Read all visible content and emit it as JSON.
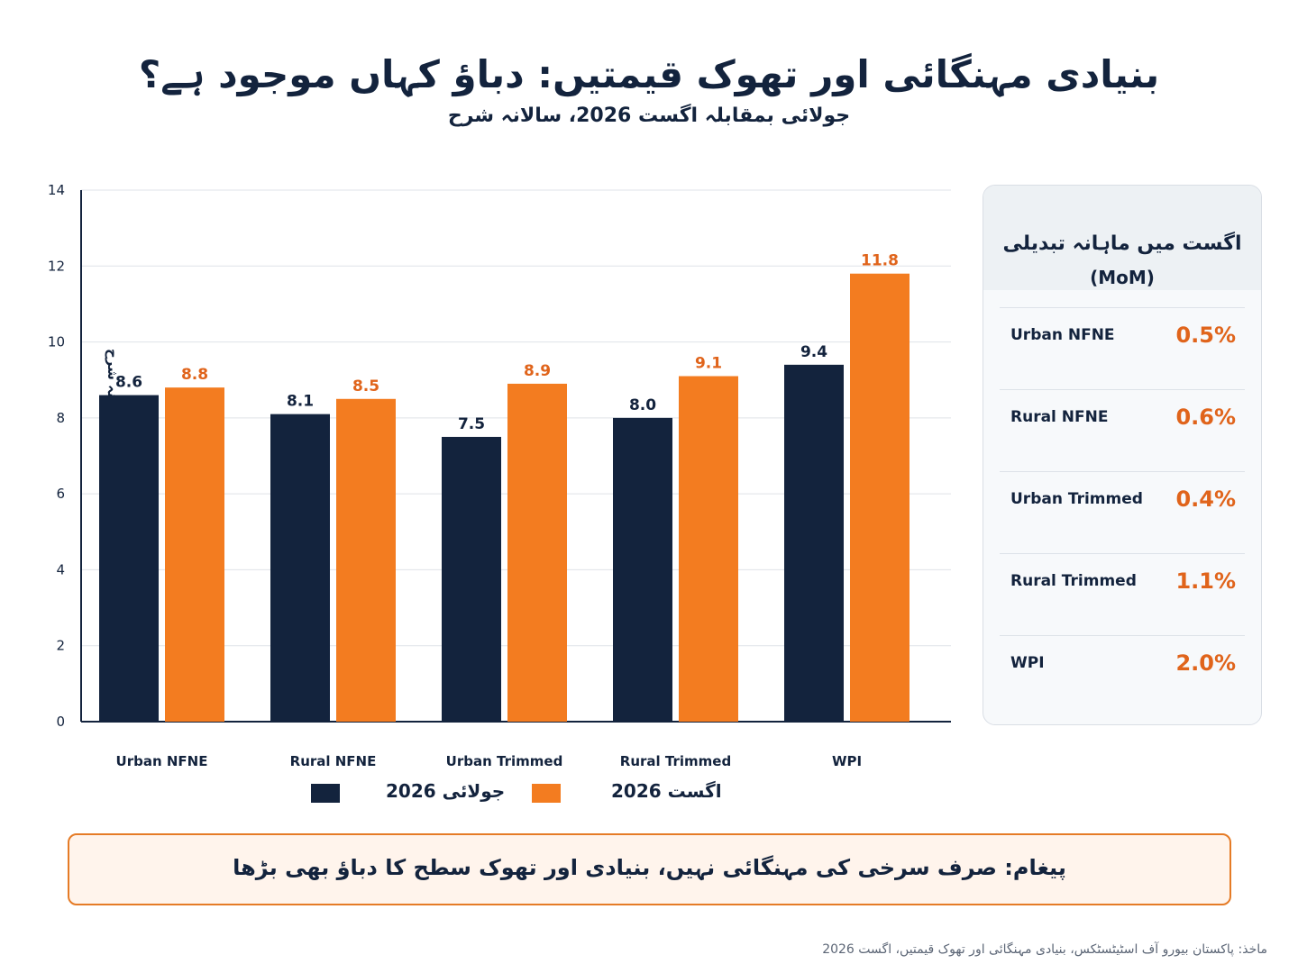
{
  "title": "بنیادی مہنگائی اور تھوک قیمتیں: دباؤ کہاں موجود ہے؟",
  "subtitle": "جولائی بمقابلہ اگست 2026، سالانہ شرح",
  "colors": {
    "july": "#13233d",
    "august": "#f37c20",
    "august_text": "#e0641b",
    "grid": "#dfe3e8",
    "axis": "#13233d"
  },
  "chart_data": {
    "type": "bar",
    "categories": [
      "Urban NFNE",
      "Rural NFNE",
      "Urban Trimmed",
      "Rural Trimmed",
      "WPI"
    ],
    "series": [
      {
        "name": "جولائی 2026",
        "values": [
          8.6,
          8.1,
          7.5,
          8.0,
          9.4
        ]
      },
      {
        "name": "اگست 2026",
        "values": [
          8.8,
          8.5,
          8.9,
          9.1,
          11.8
        ]
      }
    ],
    "ylabel": "سالانہ شرح",
    "ylim": [
      0,
      14
    ],
    "yticks": [
      "0",
      "2",
      "4",
      "6",
      "8",
      "10",
      "12",
      "14"
    ],
    "grid": true,
    "legend_position": "bottom-center"
  },
  "side_panel": {
    "title": "اگست میں ماہانہ تبدیلی",
    "title_tag": "(MoM)",
    "rows": [
      {
        "label": "Urban NFNE",
        "value": "0.5%"
      },
      {
        "label": "Rural NFNE",
        "value": "0.6%"
      },
      {
        "label": "Urban Trimmed",
        "value": "0.4%"
      },
      {
        "label": "Rural Trimmed",
        "value": "1.1%"
      },
      {
        "label": "WPI",
        "value": "2.0%"
      }
    ]
  },
  "message": "پیغام: صرف سرخی کی مہنگائی نہیں، بنیادی اور تھوک سطح کا دباؤ بھی بڑھا",
  "source": "ماخذ: پاکستان بیورو آف اسٹیٹسٹکس، بنیادی مہنگائی اور تھوک قیمتیں، اگست 2026"
}
